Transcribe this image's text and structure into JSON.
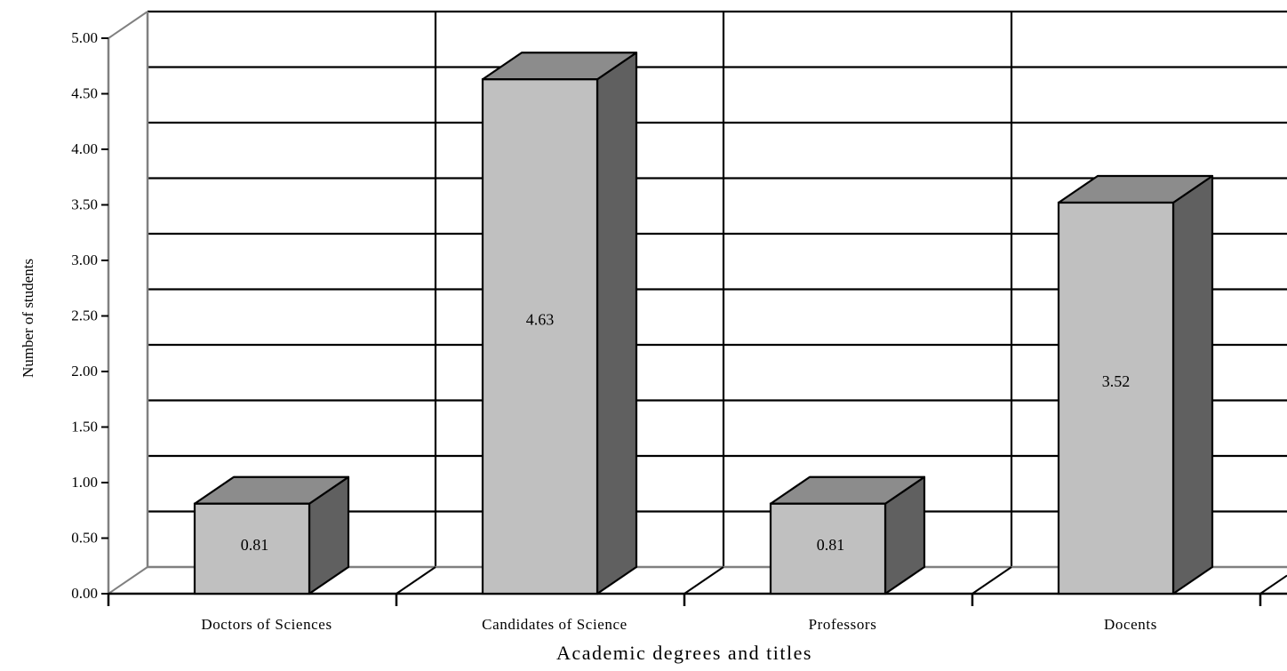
{
  "chart_data": {
    "type": "bar",
    "style": "3d",
    "categories": [
      "Doctors of Sciences",
      "Candidates of Science",
      "Professors",
      "Docents"
    ],
    "values": [
      0.81,
      4.63,
      0.81,
      3.52
    ],
    "value_labels": [
      "0.81",
      "4.63",
      "0.81",
      "3.52"
    ],
    "title": "",
    "xlabel": "Academic degrees and titles",
    "ylabel": "Number of students",
    "ylim": [
      0,
      5
    ],
    "yticks": [
      "0.00",
      "0.50",
      "1.00",
      "1.50",
      "2.00",
      "2.50",
      "3.00",
      "3.50",
      "4.00",
      "4.50",
      "5.00"
    ],
    "grid": true,
    "legend": "none",
    "colors": {
      "bar_front": "#c0c0c0",
      "bar_top": "#8c8c8c",
      "bar_side": "#606060",
      "outline": "#000000",
      "wall": "#808080"
    }
  }
}
